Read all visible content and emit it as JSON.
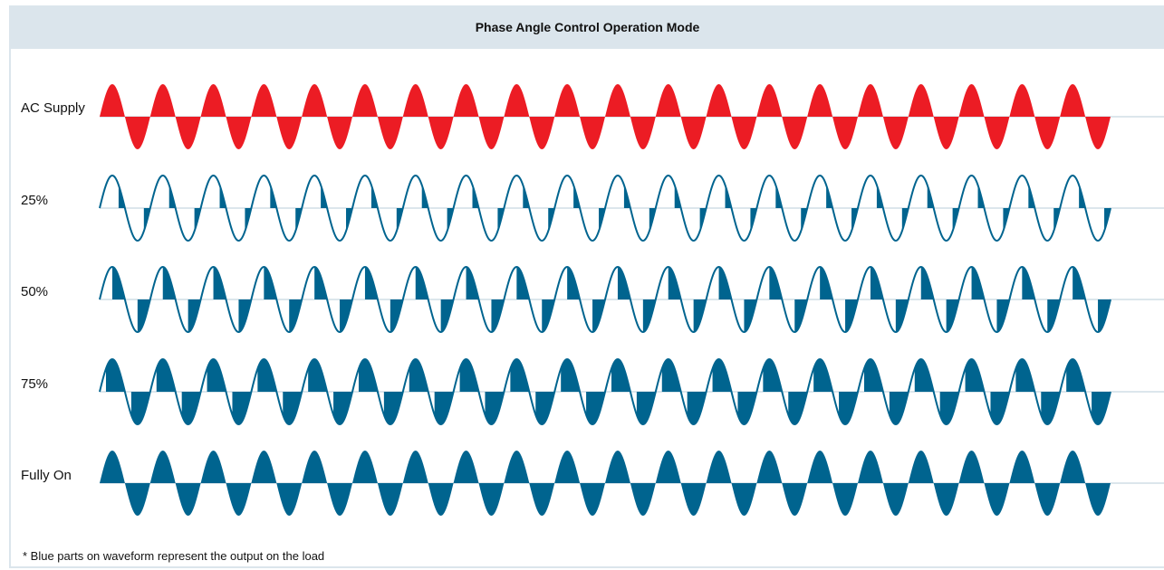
{
  "title": "Phase Angle Control Operation Mode",
  "footnote": "* Blue parts on waveform represent the output on the load",
  "colors": {
    "supply": "#ec1c24",
    "output": "#00648f",
    "outline": "#00648f",
    "baseline": "#d0dde6",
    "header_bg": "#dbe5ec"
  },
  "cycles": 20,
  "rows": [
    {
      "label": "AC Supply",
      "kind": "supply",
      "output_fraction": 1.0
    },
    {
      "label": "25%",
      "kind": "phase",
      "output_fraction": 0.25
    },
    {
      "label": "50%",
      "kind": "phase",
      "output_fraction": 0.5
    },
    {
      "label": "75%",
      "kind": "phase",
      "output_fraction": 0.75
    },
    {
      "label": "Fully On",
      "kind": "phase",
      "output_fraction": 1.0
    }
  ]
}
